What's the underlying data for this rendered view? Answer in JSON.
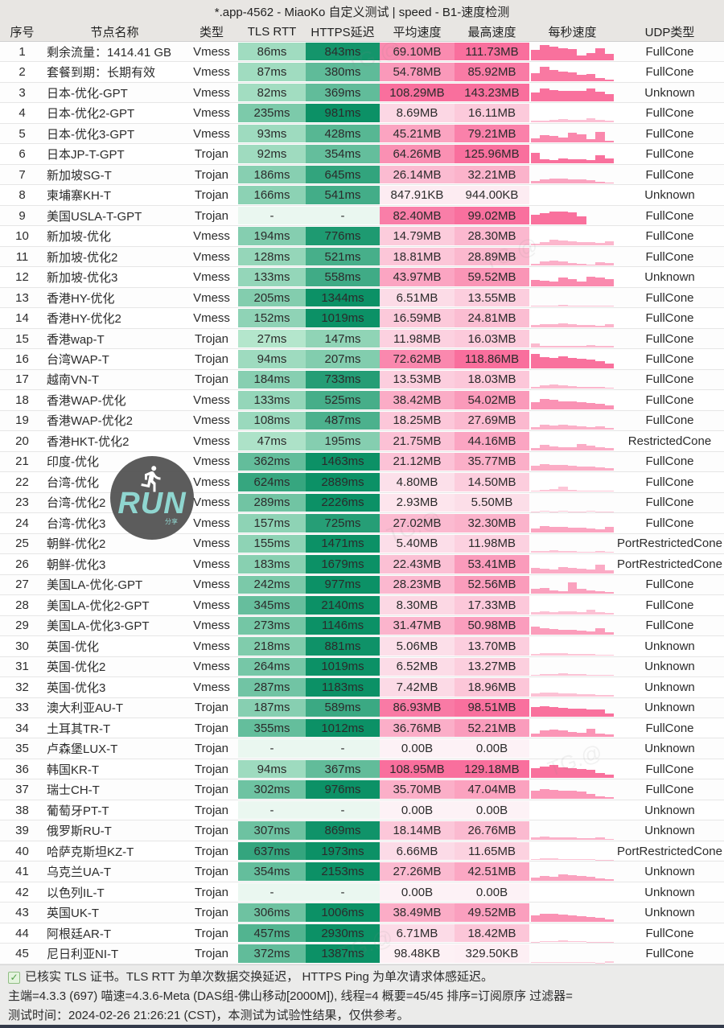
{
  "title": "*.app-4562 - MiaoKo 自定义测试 | speed - B1-速度检测",
  "columns": [
    "序号",
    "节点名称",
    "类型",
    "TLS RTT",
    "HTTPS延迟",
    "平均速度",
    "最高速度",
    "每秒速度",
    "UDP类型"
  ],
  "colors": {
    "latency_light": "#c4eed6",
    "latency_dark": "#0c9166",
    "latency_empty": "#eaf7f0",
    "speed_light": "#fdf2f6",
    "speed_strong": "#f96f9d",
    "bar": "#f9719d",
    "header_bg": "#e8e6e3",
    "footer_bg": "#ebebea",
    "logo_accent": "#8fd6d0"
  },
  "rows": [
    {
      "no": "1",
      "name": "剩余流量：1414.41 GB",
      "type": "Vmess",
      "tls": "86ms",
      "https": "843ms",
      "avg": "69.10MB",
      "max": "111.73MB",
      "udp": "FullCone",
      "bars": [
        62,
        88,
        78,
        70,
        64,
        30,
        44,
        70,
        38
      ]
    },
    {
      "no": "2",
      "name": "套餐到期：长期有效",
      "type": "Vmess",
      "tls": "87ms",
      "https": "380ms",
      "avg": "54.78MB",
      "max": "85.92MB",
      "udp": "FullCone",
      "bars": [
        45,
        82,
        62,
        55,
        50,
        34,
        42,
        16,
        10
      ]
    },
    {
      "no": "3",
      "name": "日本-优化-GPT",
      "type": "Vmess",
      "tls": "82ms",
      "https": "369ms",
      "avg": "108.29MB",
      "max": "143.23MB",
      "udp": "Unknown",
      "bars": [
        52,
        72,
        66,
        60,
        62,
        58,
        72,
        55,
        40
      ]
    },
    {
      "no": "4",
      "name": "日本-优化2-GPT",
      "type": "Vmess",
      "tls": "235ms",
      "https": "981ms",
      "avg": "8.69MB",
      "max": "16.11MB",
      "udp": "FullCone",
      "bars": [
        8,
        10,
        12,
        18,
        15,
        12,
        20,
        15,
        10
      ]
    },
    {
      "no": "5",
      "name": "日本-优化3-GPT",
      "type": "Vmess",
      "tls": "93ms",
      "https": "428ms",
      "avg": "45.21MB",
      "max": "79.21MB",
      "udp": "FullCone",
      "bars": [
        26,
        42,
        36,
        30,
        56,
        46,
        20,
        60,
        12
      ]
    },
    {
      "no": "6",
      "name": "日本JP-T-GPT",
      "type": "Trojan",
      "tls": "92ms",
      "https": "354ms",
      "avg": "64.26MB",
      "max": "125.96MB",
      "udp": "FullCone",
      "bars": [
        56,
        22,
        16,
        26,
        22,
        20,
        18,
        42,
        26
      ]
    },
    {
      "no": "7",
      "name": "新加坡SG-T",
      "type": "Trojan",
      "tls": "186ms",
      "https": "645ms",
      "avg": "26.14MB",
      "max": "32.21MB",
      "udp": "FullCone",
      "bars": [
        14,
        26,
        30,
        28,
        26,
        24,
        18,
        12,
        8
      ]
    },
    {
      "no": "8",
      "name": "柬埔寨KH-T",
      "type": "Trojan",
      "tls": "166ms",
      "https": "541ms",
      "avg": "847.91KB",
      "max": "944.00KB",
      "udp": "Unknown",
      "bars": []
    },
    {
      "no": "9",
      "name": "美国USLA-T-GPT",
      "type": "Trojan",
      "tls": "-",
      "https": "-",
      "avg": "82.40MB",
      "max": "99.02MB",
      "udp": "FullCone",
      "bars": [
        55,
        62,
        72,
        74,
        68,
        46,
        0,
        0,
        0
      ]
    },
    {
      "no": "10",
      "name": "新加坡-优化",
      "type": "Vmess",
      "tls": "194ms",
      "https": "776ms",
      "avg": "14.79MB",
      "max": "28.30MB",
      "udp": "FullCone",
      "bars": [
        10,
        16,
        32,
        26,
        20,
        18,
        15,
        12,
        22
      ]
    },
    {
      "no": "11",
      "name": "新加坡-优化2",
      "type": "Vmess",
      "tls": "128ms",
      "https": "521ms",
      "avg": "18.81MB",
      "max": "28.89MB",
      "udp": "FullCone",
      "bars": [
        12,
        22,
        26,
        22,
        15,
        10,
        8,
        20,
        14
      ]
    },
    {
      "no": "12",
      "name": "新加坡-优化3",
      "type": "Vmess",
      "tls": "133ms",
      "https": "558ms",
      "avg": "43.97MB",
      "max": "59.52MB",
      "udp": "Unknown",
      "bars": [
        36,
        30,
        28,
        46,
        40,
        25,
        52,
        46,
        38
      ]
    },
    {
      "no": "13",
      "name": "香港HY-优化",
      "type": "Vmess",
      "tls": "205ms",
      "https": "1344ms",
      "avg": "6.51MB",
      "max": "13.55MB",
      "udp": "FullCone",
      "bars": [
        5,
        8,
        6,
        10,
        8,
        6,
        5,
        8,
        6
      ]
    },
    {
      "no": "14",
      "name": "香港HY-优化2",
      "type": "Vmess",
      "tls": "152ms",
      "https": "1019ms",
      "avg": "16.59MB",
      "max": "24.81MB",
      "udp": "FullCone",
      "bars": [
        12,
        18,
        15,
        20,
        16,
        14,
        12,
        10,
        15
      ]
    },
    {
      "no": "15",
      "name": "香港wap-T",
      "type": "Trojan",
      "tls": "27ms",
      "https": "147ms",
      "avg": "11.98MB",
      "max": "16.03MB",
      "udp": "FullCone",
      "bars": [
        22,
        10,
        8,
        12,
        10,
        8,
        16,
        10,
        8
      ]
    },
    {
      "no": "16",
      "name": "台湾WAP-T",
      "type": "Trojan",
      "tls": "94ms",
      "https": "207ms",
      "avg": "72.62MB",
      "max": "118.86MB",
      "udp": "FullCone",
      "bars": [
        78,
        62,
        55,
        66,
        58,
        52,
        48,
        40,
        25
      ]
    },
    {
      "no": "17",
      "name": "越南VN-T",
      "type": "Trojan",
      "tls": "184ms",
      "https": "733ms",
      "avg": "13.53MB",
      "max": "18.03MB",
      "udp": "FullCone",
      "bars": [
        10,
        18,
        24,
        20,
        15,
        12,
        10,
        8,
        5
      ]
    },
    {
      "no": "18",
      "name": "香港WAP-优化",
      "type": "Vmess",
      "tls": "133ms",
      "https": "525ms",
      "avg": "38.42MB",
      "max": "54.02MB",
      "udp": "FullCone",
      "bars": [
        40,
        56,
        50,
        45,
        42,
        38,
        35,
        28,
        20
      ]
    },
    {
      "no": "19",
      "name": "香港WAP-优化2",
      "type": "Vmess",
      "tls": "108ms",
      "https": "487ms",
      "avg": "18.25MB",
      "max": "27.69MB",
      "udp": "FullCone",
      "bars": [
        15,
        26,
        22,
        28,
        24,
        20,
        15,
        18,
        12
      ]
    },
    {
      "no": "20",
      "name": "香港HKT-优化2",
      "type": "Vmess",
      "tls": "47ms",
      "https": "195ms",
      "avg": "21.75MB",
      "max": "44.16MB",
      "udp": "RestrictedCone",
      "bars": [
        12,
        30,
        20,
        15,
        18,
        36,
        25,
        15,
        10
      ]
    },
    {
      "no": "21",
      "name": "印度-优化",
      "type": "Vmess",
      "tls": "362ms",
      "https": "1463ms",
      "avg": "21.12MB",
      "max": "35.77MB",
      "udp": "FullCone",
      "bars": [
        26,
        36,
        32,
        30,
        28,
        25,
        22,
        18,
        12
      ]
    },
    {
      "no": "22",
      "name": "台湾-优化",
      "type": "Vmess",
      "tls": "624ms",
      "https": "2889ms",
      "avg": "4.80MB",
      "max": "14.50MB",
      "udp": "FullCone",
      "bars": [
        5,
        8,
        10,
        26,
        8,
        5,
        3,
        2,
        2
      ]
    },
    {
      "no": "23",
      "name": "台湾-优化2",
      "type": "Vmess",
      "tls": "289ms",
      "https": "2226ms",
      "avg": "2.93MB",
      "max": "5.50MB",
      "udp": "FullCone",
      "bars": [
        2,
        3,
        2,
        3,
        2,
        2,
        3,
        2,
        2
      ]
    },
    {
      "no": "24",
      "name": "台湾-优化3",
      "type": "Vmess",
      "tls": "157ms",
      "https": "725ms",
      "avg": "27.02MB",
      "max": "32.30MB",
      "udp": "FullCone",
      "bars": [
        20,
        36,
        30,
        28,
        26,
        24,
        22,
        18,
        30
      ]
    },
    {
      "no": "25",
      "name": "朝鲜-优化2",
      "type": "Vmess",
      "tls": "155ms",
      "https": "1471ms",
      "avg": "5.40MB",
      "max": "11.98MB",
      "udp": "PortRestrictedCone",
      "bars": [
        8,
        10,
        12,
        10,
        8,
        6,
        5,
        8,
        6
      ]
    },
    {
      "no": "26",
      "name": "朝鲜-优化3",
      "type": "Vmess",
      "tls": "183ms",
      "https": "1679ms",
      "avg": "22.43MB",
      "max": "53.41MB",
      "udp": "PortRestrictedCone",
      "bars": [
        30,
        25,
        22,
        36,
        28,
        24,
        20,
        46,
        18
      ]
    },
    {
      "no": "27",
      "name": "美国LA-优化-GPT",
      "type": "Vmess",
      "tls": "242ms",
      "https": "977ms",
      "avg": "28.23MB",
      "max": "52.56MB",
      "udp": "FullCone",
      "bars": [
        26,
        32,
        20,
        15,
        62,
        25,
        18,
        12,
        10
      ]
    },
    {
      "no": "28",
      "name": "美国LA-优化2-GPT",
      "type": "Vmess",
      "tls": "345ms",
      "https": "2140ms",
      "avg": "8.30MB",
      "max": "17.33MB",
      "udp": "FullCone",
      "bars": [
        10,
        15,
        12,
        18,
        14,
        12,
        24,
        10,
        8
      ]
    },
    {
      "no": "29",
      "name": "美国LA-优化3-GPT",
      "type": "Vmess",
      "tls": "273ms",
      "https": "1146ms",
      "avg": "31.47MB",
      "max": "50.98MB",
      "udp": "FullCone",
      "bars": [
        46,
        36,
        30,
        28,
        25,
        22,
        20,
        36,
        15
      ]
    },
    {
      "no": "30",
      "name": "英国-优化",
      "type": "Vmess",
      "tls": "218ms",
      "https": "881ms",
      "avg": "5.06MB",
      "max": "13.70MB",
      "udp": "Unknown",
      "bars": [
        8,
        10,
        12,
        10,
        8,
        6,
        5,
        4,
        3
      ]
    },
    {
      "no": "31",
      "name": "英国-优化2",
      "type": "Vmess",
      "tls": "264ms",
      "https": "1019ms",
      "avg": "6.52MB",
      "max": "13.27MB",
      "udp": "Unknown",
      "bars": [
        6,
        10,
        8,
        12,
        10,
        8,
        6,
        5,
        4
      ]
    },
    {
      "no": "32",
      "name": "英国-优化3",
      "type": "Vmess",
      "tls": "287ms",
      "https": "1183ms",
      "avg": "7.42MB",
      "max": "18.96MB",
      "udp": "Unknown",
      "bars": [
        15,
        20,
        18,
        16,
        14,
        12,
        10,
        8,
        6
      ]
    },
    {
      "no": "33",
      "name": "澳大利亚AU-T",
      "type": "Trojan",
      "tls": "187ms",
      "https": "589ms",
      "avg": "86.93MB",
      "max": "98.51MB",
      "udp": "Unknown",
      "bars": [
        52,
        56,
        54,
        50,
        46,
        44,
        40,
        38,
        20
      ]
    },
    {
      "no": "34",
      "name": "土耳其TR-T",
      "type": "Trojan",
      "tls": "355ms",
      "https": "1012ms",
      "avg": "36.76MB",
      "max": "52.21MB",
      "udp": "FullCone",
      "bars": [
        20,
        36,
        42,
        38,
        30,
        25,
        46,
        22,
        15
      ]
    },
    {
      "no": "35",
      "name": "卢森堡LUX-T",
      "type": "Trojan",
      "tls": "-",
      "https": "-",
      "avg": "0.00B",
      "max": "0.00B",
      "udp": "Unknown",
      "bars": []
    },
    {
      "no": "36",
      "name": "韩国KR-T",
      "type": "Trojan",
      "tls": "94ms",
      "https": "367ms",
      "avg": "108.95MB",
      "max": "129.18MB",
      "udp": "FullCone",
      "bars": [
        56,
        66,
        72,
        62,
        55,
        50,
        45,
        30,
        20
      ]
    },
    {
      "no": "37",
      "name": "瑞士CH-T",
      "type": "Trojan",
      "tls": "302ms",
      "https": "976ms",
      "avg": "35.70MB",
      "max": "47.04MB",
      "udp": "FullCone",
      "bars": [
        46,
        52,
        48,
        45,
        42,
        38,
        25,
        15,
        10
      ]
    },
    {
      "no": "38",
      "name": "葡萄牙PT-T",
      "type": "Trojan",
      "tls": "-",
      "https": "-",
      "avg": "0.00B",
      "max": "0.00B",
      "udp": "Unknown",
      "bars": []
    },
    {
      "no": "39",
      "name": "俄罗斯RU-T",
      "type": "Trojan",
      "tls": "307ms",
      "https": "869ms",
      "avg": "18.14MB",
      "max": "26.76MB",
      "udp": "Unknown",
      "bars": [
        12,
        18,
        15,
        14,
        12,
        10,
        8,
        15,
        6
      ]
    },
    {
      "no": "40",
      "name": "哈萨克斯坦KZ-T",
      "type": "Trojan",
      "tls": "637ms",
      "https": "1973ms",
      "avg": "6.66MB",
      "max": "11.65MB",
      "udp": "PortRestrictedCone",
      "bars": [
        8,
        12,
        10,
        8,
        6,
        5,
        4,
        3,
        2
      ]
    },
    {
      "no": "41",
      "name": "乌克兰UA-T",
      "type": "Trojan",
      "tls": "354ms",
      "https": "2153ms",
      "avg": "27.26MB",
      "max": "42.51MB",
      "udp": "Unknown",
      "bars": [
        18,
        26,
        20,
        36,
        30,
        25,
        20,
        15,
        10
      ]
    },
    {
      "no": "42",
      "name": "以色列IL-T",
      "type": "Trojan",
      "tls": "-",
      "https": "-",
      "avg": "0.00B",
      "max": "0.00B",
      "udp": "Unknown",
      "bars": []
    },
    {
      "no": "43",
      "name": "英国UK-T",
      "type": "Trojan",
      "tls": "306ms",
      "https": "1006ms",
      "avg": "38.49MB",
      "max": "49.52MB",
      "udp": "Unknown",
      "bars": [
        36,
        46,
        42,
        38,
        35,
        30,
        28,
        22,
        12
      ]
    },
    {
      "no": "44",
      "name": "阿根廷AR-T",
      "type": "Trojan",
      "tls": "457ms",
      "https": "2930ms",
      "avg": "6.71MB",
      "max": "18.42MB",
      "udp": "FullCone",
      "bars": [
        3,
        5,
        8,
        12,
        6,
        4,
        3,
        2,
        2
      ]
    },
    {
      "no": "45",
      "name": "尼日利亚NI-T",
      "type": "Trojan",
      "tls": "372ms",
      "https": "1387ms",
      "avg": "98.48KB",
      "max": "329.50KB",
      "udp": "FullCone",
      "bars": [
        2,
        3,
        2,
        2,
        3,
        2,
        2,
        1,
        6
      ]
    }
  ],
  "logo": {
    "text": "RUN",
    "sub": "分享"
  },
  "watermark": "TG.@",
  "footer": {
    "line1": "已核实 TLS 证书。TLS RTT 为单次数据交换延迟， HTTPS Ping 为单次请求体感延迟。",
    "line2": "主端=4.3.3 (697) 喵速=4.3.6-Meta (DAS组-佛山移动[2000M]), 线程=4 概要=45/45 排序=订阅原序 过滤器=",
    "line3": "测试时间：2024-02-26 21:26:21 (CST)，本测试为试验性结果，仅供参考。"
  }
}
